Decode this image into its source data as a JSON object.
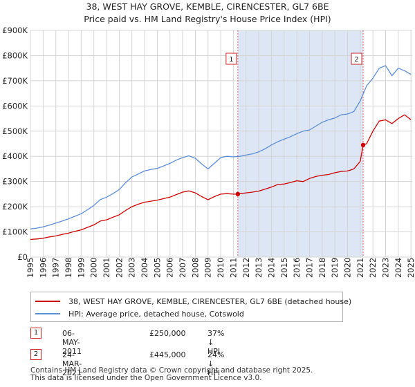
{
  "title_line1": "38, WEST HAY GROVE, KEMBLE, CIRENCESTER, GL7 6BE",
  "title_line2": "Price paid vs. HM Land Registry's House Price Index (HPI)",
  "chart_data": {
    "type": "line",
    "xlim": [
      1995,
      2025.1
    ],
    "ylim": [
      0,
      900000
    ],
    "x_ticks": [
      1995,
      1996,
      1997,
      1998,
      1999,
      2000,
      2001,
      2002,
      2003,
      2004,
      2005,
      2006,
      2007,
      2008,
      2009,
      2010,
      2011,
      2012,
      2013,
      2014,
      2015,
      2016,
      2017,
      2018,
      2019,
      2020,
      2021,
      2022,
      2023,
      2024,
      2025
    ],
    "y_ticks": [
      {
        "value": 0,
        "label": "£0"
      },
      {
        "value": 100000,
        "label": "£100K"
      },
      {
        "value": 200000,
        "label": "£200K"
      },
      {
        "value": 300000,
        "label": "£300K"
      },
      {
        "value": 400000,
        "label": "£400K"
      },
      {
        "value": 500000,
        "label": "£500K"
      },
      {
        "value": 600000,
        "label": "£600K"
      },
      {
        "value": 700000,
        "label": "£700K"
      },
      {
        "value": 800000,
        "label": "£800K"
      },
      {
        "value": 900000,
        "label": "£900K"
      }
    ],
    "grid": true,
    "shaded_region": {
      "from": 2011.35,
      "to": 2021.23,
      "color": "#dde6f5"
    },
    "series": [
      {
        "name": "38, WEST HAY GROVE, KEMBLE, CIRENCESTER, GL7 6BE (detached house)",
        "color": "#cc0000",
        "x": [
          1995,
          1995.5,
          1996,
          1996.5,
          1997,
          1997.5,
          1998,
          1998.5,
          1999,
          1999.5,
          2000,
          2000.5,
          2001,
          2001.5,
          2002,
          2002.5,
          2003,
          2003.5,
          2004,
          2004.5,
          2005,
          2005.5,
          2006,
          2006.5,
          2007,
          2007.5,
          2008,
          2008.5,
          2009,
          2009.5,
          2010,
          2010.5,
          2011,
          2011.35,
          2011.5,
          2012,
          2012.5,
          2013,
          2013.5,
          2014,
          2014.5,
          2015,
          2015.5,
          2016,
          2016.5,
          2017,
          2017.5,
          2018,
          2018.5,
          2019,
          2019.5,
          2020,
          2020.5,
          2021,
          2021.23,
          2021.5,
          2022,
          2022.5,
          2023,
          2023.5,
          2024,
          2024.5,
          2025
        ],
        "y": [
          70000,
          72000,
          75000,
          80000,
          84000,
          90000,
          95000,
          102000,
          108000,
          118000,
          128000,
          143000,
          148000,
          158000,
          168000,
          185000,
          200000,
          210000,
          218000,
          222000,
          226000,
          232000,
          238000,
          248000,
          258000,
          263000,
          255000,
          240000,
          228000,
          240000,
          250000,
          252000,
          250000,
          250000,
          252000,
          255000,
          258000,
          262000,
          270000,
          278000,
          288000,
          290000,
          296000,
          303000,
          300000,
          312000,
          320000,
          325000,
          328000,
          335000,
          340000,
          342000,
          350000,
          380000,
          445000,
          450000,
          500000,
          540000,
          545000,
          530000,
          550000,
          565000,
          545000
        ]
      },
      {
        "name": "HPI: Average price, detached house, Cotswold",
        "color": "#5b8ed6",
        "x": [
          1995,
          1995.5,
          1996,
          1996.5,
          1997,
          1997.5,
          1998,
          1998.5,
          1999,
          1999.5,
          2000,
          2000.5,
          2001,
          2001.5,
          2002,
          2002.5,
          2003,
          2003.5,
          2004,
          2004.5,
          2005,
          2005.5,
          2006,
          2006.5,
          2007,
          2007.5,
          2008,
          2008.5,
          2009,
          2009.5,
          2010,
          2010.5,
          2011,
          2011.5,
          2012,
          2012.5,
          2013,
          2013.5,
          2014,
          2014.5,
          2015,
          2015.5,
          2016,
          2016.5,
          2017,
          2017.5,
          2018,
          2018.5,
          2019,
          2019.5,
          2020,
          2020.5,
          2021,
          2021.5,
          2022,
          2022.5,
          2023,
          2023.5,
          2024,
          2024.5,
          2025
        ],
        "y": [
          112000,
          115000,
          120000,
          127000,
          135000,
          143000,
          152000,
          162000,
          172000,
          188000,
          205000,
          228000,
          238000,
          252000,
          268000,
          295000,
          318000,
          330000,
          342000,
          348000,
          352000,
          362000,
          372000,
          385000,
          395000,
          402000,
          392000,
          370000,
          350000,
          372000,
          395000,
          400000,
          398000,
          400000,
          405000,
          410000,
          418000,
          430000,
          445000,
          458000,
          468000,
          478000,
          490000,
          500000,
          505000,
          520000,
          535000,
          545000,
          552000,
          565000,
          568000,
          578000,
          620000,
          680000,
          710000,
          750000,
          760000,
          720000,
          750000,
          740000,
          725000
        ]
      }
    ],
    "sales": [
      {
        "label": "1",
        "x": 2011.35,
        "y": 250000
      },
      {
        "label": "2",
        "x": 2021.23,
        "y": 445000
      }
    ]
  },
  "legend": {
    "red_label": "38, WEST HAY GROVE, KEMBLE, CIRENCESTER, GL7 6BE (detached house)",
    "blue_label": "HPI: Average price, detached house, Cotswold"
  },
  "transactions": [
    {
      "num": "1",
      "date": "06-MAY-2011",
      "price": "£250,000",
      "hpi": "37% ↓ HPI"
    },
    {
      "num": "2",
      "date": "24-MAR-2021",
      "price": "£445,000",
      "hpi": "24% ↓ HPI"
    }
  ],
  "footer_line1": "Contains HM Land Registry data © Crown copyright and database right 2025.",
  "footer_line2": "This data is licensed under the Open Government Licence v3.0."
}
